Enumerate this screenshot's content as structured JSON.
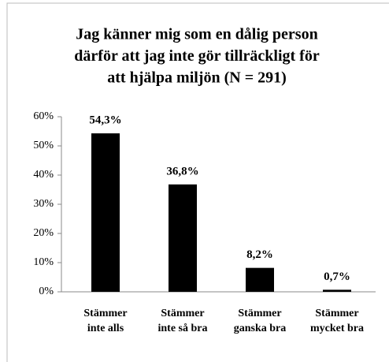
{
  "chart_data": {
    "type": "bar",
    "title": [
      "Jag känner mig som en dålig person",
      "därför att jag inte gör tillräckligt för",
      "att hjälpa miljön (N = 291)"
    ],
    "categories": [
      [
        "Stämmer",
        "inte alls"
      ],
      [
        "Stämmer",
        "inte så bra"
      ],
      [
        "Stämmer",
        "ganska bra"
      ],
      [
        "Stämmer",
        "mycket bra"
      ]
    ],
    "values": [
      54.3,
      36.8,
      8.2,
      0.7
    ],
    "value_labels": [
      "54,3%",
      "36,8%",
      "8,2%",
      "0,7%"
    ],
    "color": "#000000",
    "ylim": [
      0,
      60
    ],
    "yticks": [
      {
        "value": 0,
        "label": "0%"
      },
      {
        "value": 10,
        "label": "10%"
      },
      {
        "value": 20,
        "label": "20%"
      },
      {
        "value": 30,
        "label": "30%"
      },
      {
        "value": 40,
        "label": "40%"
      },
      {
        "value": 50,
        "label": "50%"
      },
      {
        "value": 60,
        "label": "60%"
      }
    ],
    "grid": false
  }
}
